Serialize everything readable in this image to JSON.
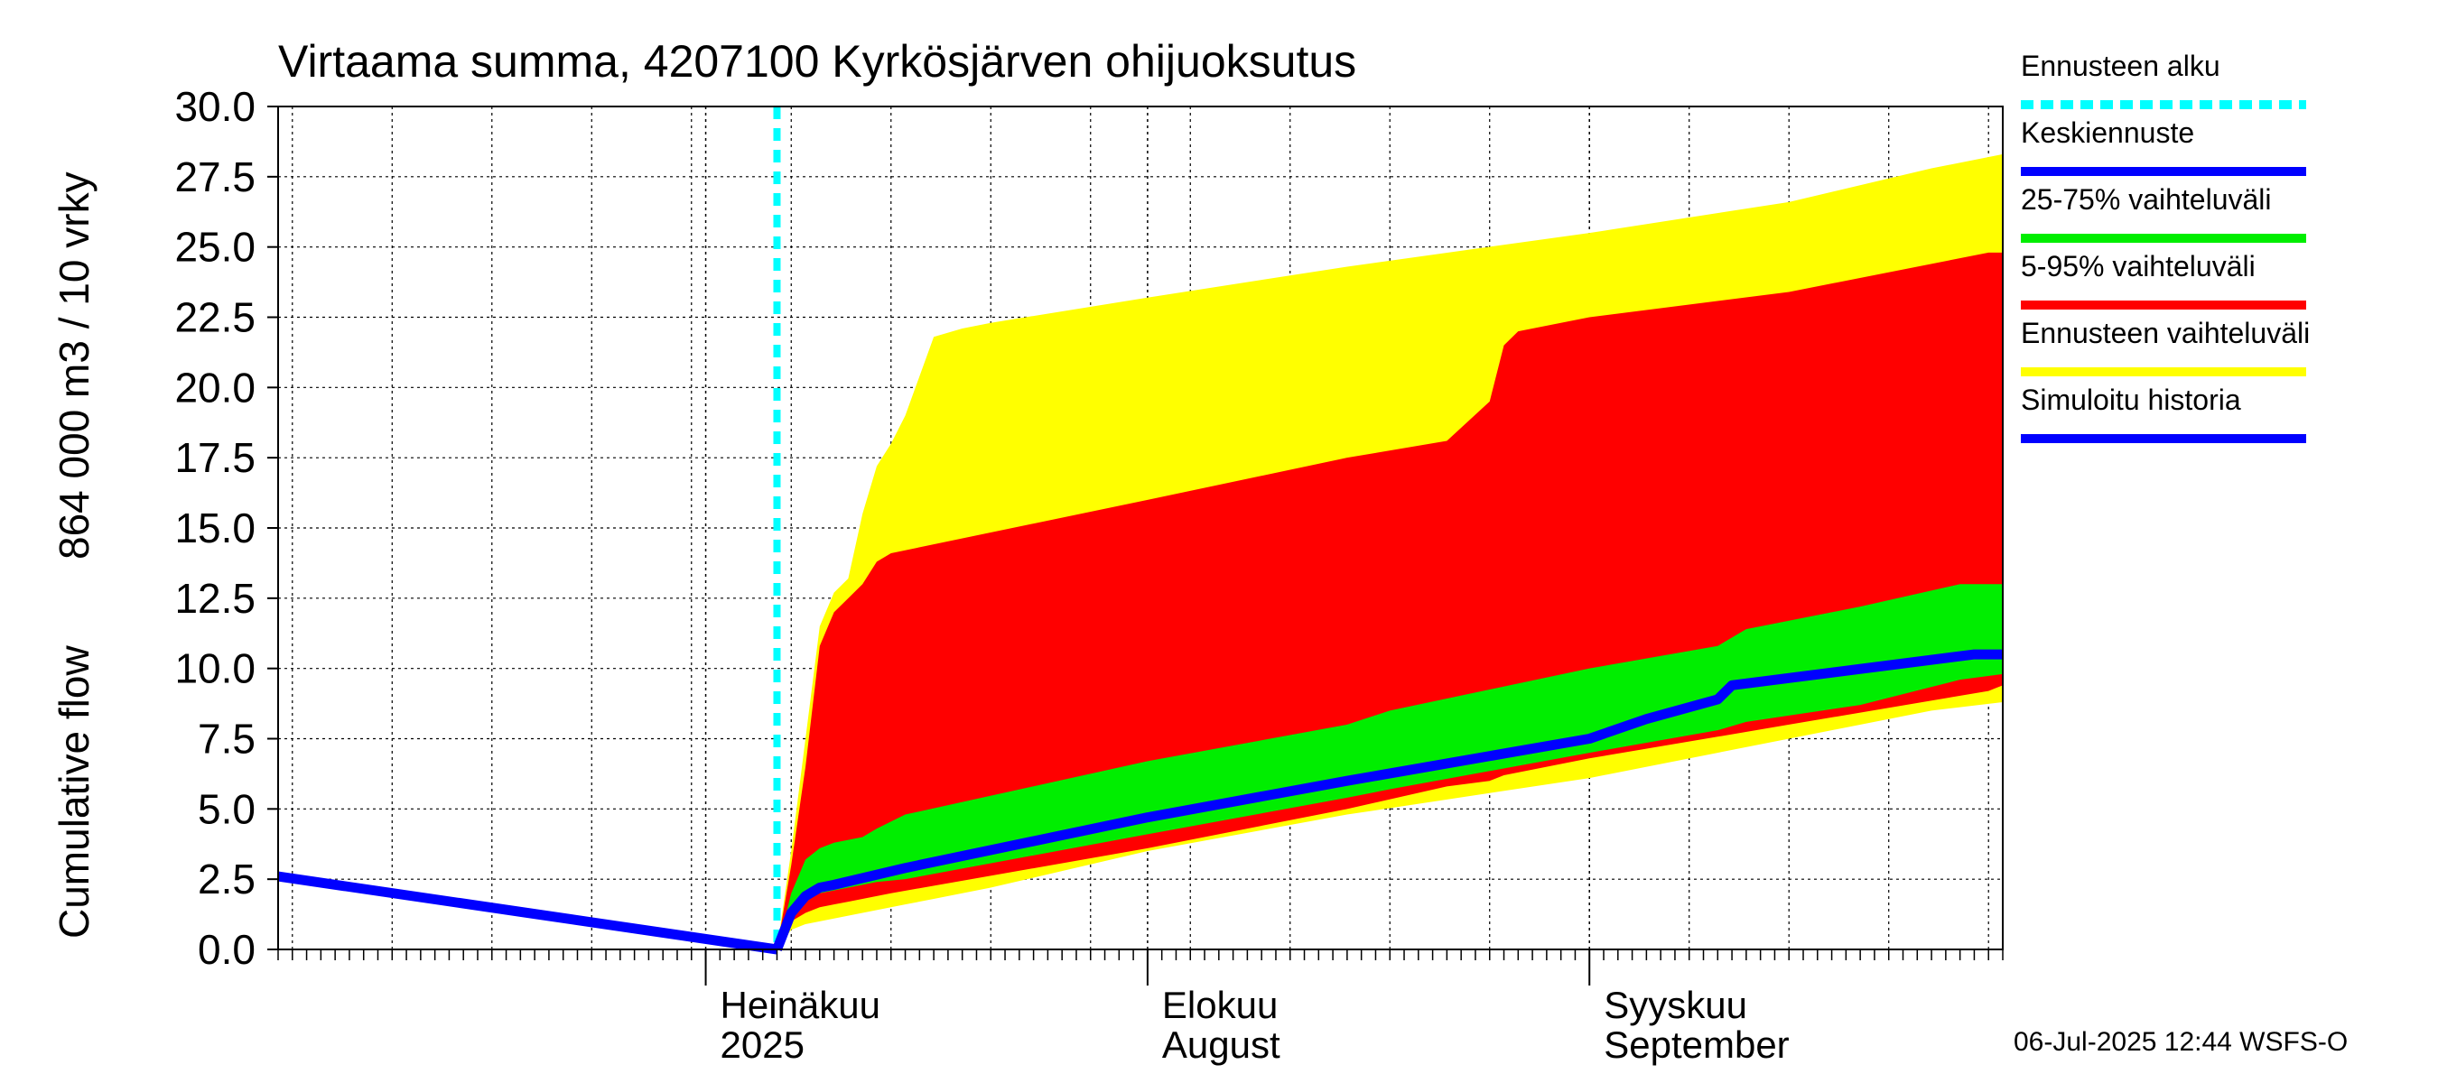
{
  "chart_data": {
    "type": "area",
    "title": "Virtaama summa, 4207100 Kyrkösjärven ohijuoksutus",
    "ylabel_lines": [
      "Cumulative flow",
      "864 000 m3 / 10 vrky"
    ],
    "ylim": [
      0,
      30
    ],
    "yticks": [
      "0.0",
      "2.5",
      "5.0",
      "7.5",
      "10.0",
      "12.5",
      "15.0",
      "17.5",
      "20.0",
      "22.5",
      "25.0",
      "27.5",
      "30.0"
    ],
    "xlim": [
      "2025-06-01",
      "2025-09-30"
    ],
    "x_month_labels": [
      {
        "date": "2025-07-01",
        "line1": "Heinäkuu",
        "line2": "2025"
      },
      {
        "date": "2025-08-01",
        "line1": "Elokuu",
        "line2": "August"
      },
      {
        "date": "2025-09-01",
        "line1": "Syyskuu",
        "line2": "September"
      }
    ],
    "forecast_start": "2025-07-06",
    "grid": true,
    "legend_position": "right",
    "series": [
      {
        "name": "Ennusteen vaihteluväli",
        "color": "#ffff00",
        "kind": "band",
        "x": [
          "2025-07-06",
          "2025-07-07",
          "2025-07-08",
          "2025-07-09",
          "2025-07-10",
          "2025-07-11",
          "2025-07-12",
          "2025-07-13",
          "2025-07-14",
          "2025-07-15",
          "2025-07-17",
          "2025-07-19",
          "2025-07-21",
          "2025-08-01",
          "2025-08-15",
          "2025-09-01",
          "2025-09-15",
          "2025-09-25",
          "2025-09-30"
        ],
        "upper": [
          0.0,
          3.5,
          7.5,
          11.5,
          12.7,
          13.2,
          15.5,
          17.2,
          18.0,
          19.0,
          21.8,
          22.1,
          22.3,
          23.2,
          24.3,
          25.5,
          26.6,
          27.8,
          28.3
        ],
        "lower": [
          0.0,
          0.7,
          0.9,
          1.0,
          1.1,
          1.2,
          1.3,
          1.4,
          1.5,
          1.6,
          1.8,
          2.0,
          2.2,
          3.5,
          4.8,
          6.1,
          7.5,
          8.5,
          8.8
        ]
      },
      {
        "name": "5-95% vaihteluväli",
        "color": "#ff0000",
        "kind": "band",
        "x": [
          "2025-07-06",
          "2025-07-07",
          "2025-07-08",
          "2025-07-09",
          "2025-07-10",
          "2025-07-11",
          "2025-07-12",
          "2025-07-13",
          "2025-07-14",
          "2025-08-01",
          "2025-08-15",
          "2025-08-22",
          "2025-08-25",
          "2025-08-26",
          "2025-08-27",
          "2025-09-01",
          "2025-09-15",
          "2025-09-29",
          "2025-09-30"
        ],
        "upper": [
          0.0,
          3.0,
          6.5,
          10.8,
          12.0,
          12.5,
          13.0,
          13.8,
          14.1,
          16.0,
          17.5,
          18.1,
          19.5,
          21.5,
          22.0,
          22.5,
          23.4,
          24.8,
          24.8
        ],
        "lower": [
          0.0,
          1.0,
          1.3,
          1.5,
          1.6,
          1.7,
          1.8,
          1.9,
          2.0,
          3.6,
          5.0,
          5.8,
          6.0,
          6.2,
          6.3,
          6.8,
          8.0,
          9.2,
          9.4
        ]
      },
      {
        "name": "25-75% vaihteluväli",
        "color": "#00ee00",
        "kind": "band",
        "x": [
          "2025-07-06",
          "2025-07-07",
          "2025-07-08",
          "2025-07-09",
          "2025-07-10",
          "2025-07-12",
          "2025-07-13",
          "2025-07-15",
          "2025-08-01",
          "2025-08-15",
          "2025-08-18",
          "2025-09-01",
          "2025-09-10",
          "2025-09-12",
          "2025-09-20",
          "2025-09-27",
          "2025-09-30"
        ],
        "upper": [
          0.0,
          2.0,
          3.2,
          3.6,
          3.8,
          4.0,
          4.3,
          4.8,
          6.7,
          8.0,
          8.5,
          10.0,
          10.8,
          11.4,
          12.2,
          13.0,
          13.0
        ],
        "lower": [
          0.0,
          1.5,
          1.8,
          2.0,
          2.1,
          2.3,
          2.4,
          2.5,
          4.1,
          5.4,
          5.7,
          7.0,
          7.8,
          8.1,
          8.7,
          9.6,
          9.8
        ]
      },
      {
        "name": "Keskiennuste",
        "color": "#0000ff",
        "kind": "line",
        "x": [
          "2025-07-06",
          "2025-07-07",
          "2025-07-08",
          "2025-07-09",
          "2025-07-10",
          "2025-07-15",
          "2025-08-01",
          "2025-08-15",
          "2025-09-01",
          "2025-09-05",
          "2025-09-10",
          "2025-09-11",
          "2025-09-28",
          "2025-09-30"
        ],
        "y": [
          0.0,
          1.3,
          1.9,
          2.2,
          2.3,
          2.9,
          4.7,
          6.0,
          7.5,
          8.2,
          8.9,
          9.4,
          10.5,
          10.5
        ]
      },
      {
        "name": "Simuloitu historia",
        "color": "#0000ff",
        "kind": "line",
        "x": [
          "2025-06-01",
          "2025-07-06"
        ],
        "y": [
          2.6,
          0.0
        ]
      }
    ],
    "legend": [
      {
        "label": "Ennusteen alku",
        "color": "#00ffff",
        "style": "dashed"
      },
      {
        "label": "Keskiennuste",
        "color": "#0000ff",
        "style": "solid"
      },
      {
        "label": "25-75% vaihteluväli",
        "color": "#00ee00",
        "style": "solid"
      },
      {
        "label": "5-95% vaihteluväli",
        "color": "#ff0000",
        "style": "solid"
      },
      {
        "label": "Ennusteen vaihteluväli",
        "color": "#ffff00",
        "style": "solid"
      },
      {
        "label": "Simuloitu historia",
        "color": "#0000ff",
        "style": "solid"
      }
    ],
    "footer": "06-Jul-2025 12:44 WSFS-O"
  }
}
